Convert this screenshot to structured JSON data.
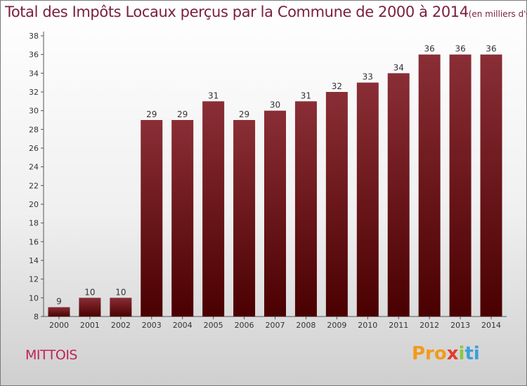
{
  "title": "Total des Impôts Locaux perçus par la Commune de 2000 à 2014",
  "unit": "(en milliers d'€)",
  "commune": "MITTOIS",
  "logo": {
    "p1": "Pro",
    "x": "x",
    "p2": "i",
    "p3": "ti"
  },
  "colors": {
    "bar_top": "#8a2e36",
    "bar_bottom": "#4a0000",
    "title": "#7a1f3c",
    "commune": "#c0235a"
  },
  "chart_data": {
    "type": "bar",
    "categories": [
      "2000",
      "2001",
      "2002",
      "2003",
      "2004",
      "2005",
      "2006",
      "2007",
      "2008",
      "2009",
      "2010",
      "2011",
      "2012",
      "2013",
      "2014"
    ],
    "values": [
      9,
      10,
      10,
      29,
      29,
      31,
      29,
      30,
      31,
      32,
      33,
      34,
      36,
      36,
      36
    ],
    "title": "Total des Impôts Locaux perçus par la Commune de 2000 à 2014",
    "xlabel": "",
    "ylabel": "",
    "ylim": [
      8,
      38
    ],
    "yticks": [
      8,
      10,
      12,
      14,
      16,
      18,
      20,
      22,
      24,
      26,
      28,
      30,
      32,
      34,
      36,
      38
    ],
    "grid": false,
    "data_labels": true
  }
}
